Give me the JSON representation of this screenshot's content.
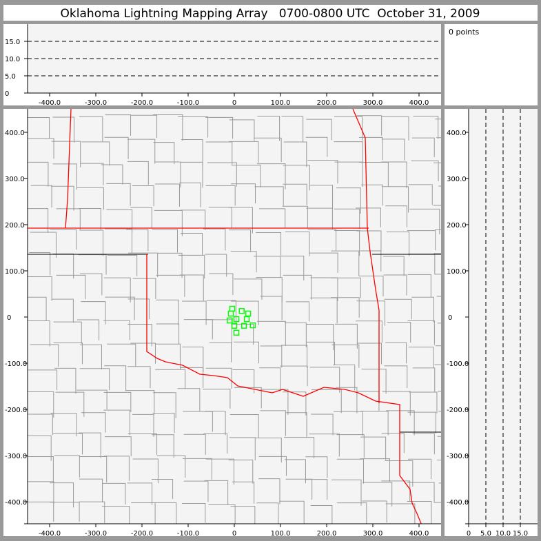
{
  "title": "Oklahoma Lightning Mapping Array   0700-0800 UTC  October 31, 2009",
  "points_label": "0 points",
  "colors": {
    "frame": "#999999",
    "plot_bg": "#f4f4f4",
    "state_border": "#ff0000",
    "county_border": "#999999",
    "station_marker": "#00ff00"
  },
  "chart_data": [
    {
      "type": "scatter",
      "panel": "altitude-vs-east-west",
      "xlim": [
        -450,
        450
      ],
      "ylim": [
        0,
        20
      ],
      "xticks": [
        -400,
        -300,
        -200,
        -100,
        0,
        100,
        200,
        300,
        400
      ],
      "xtick_labels": [
        "-400.0",
        "-300.0",
        "-200.0",
        "-100.0",
        "0",
        "100.0",
        "200.0",
        "300.0",
        "400.0"
      ],
      "yticks": [
        0,
        5,
        10,
        15
      ],
      "ytick_labels": [
        "0",
        "5.0",
        "10.0",
        "15.0"
      ],
      "grid": "dashed horizontal at 5, 10, 15",
      "points": []
    },
    {
      "type": "scatter",
      "panel": "plan-view-map",
      "xlim": [
        -450,
        450
      ],
      "ylim": [
        -450,
        450
      ],
      "xticks": [
        -400,
        -300,
        -200,
        -100,
        0,
        100,
        200,
        300,
        400
      ],
      "xtick_labels": [
        "-400.0",
        "-300.0",
        "-200.0",
        "-100.0",
        "0",
        "100.0",
        "200.0",
        "300.0",
        "400.0"
      ],
      "yticks": [
        -400,
        -300,
        -200,
        -100,
        0,
        100,
        200,
        300,
        400
      ],
      "ytick_labels": [
        "-400.0",
        "-300.0",
        "-200.0",
        "-100.0",
        "0",
        "100.0",
        "200.0",
        "300.0",
        "400.0"
      ],
      "stations": [
        [
          -4.5,
          18
        ],
        [
          16,
          13
        ],
        [
          30,
          7.5
        ],
        [
          -7.5,
          7.5
        ],
        [
          -10,
          -7.5
        ],
        [
          4.5,
          -4.5
        ],
        [
          27,
          -4.5
        ],
        [
          40,
          -18
        ],
        [
          0,
          -19
        ],
        [
          21,
          -19
        ],
        [
          4.5,
          -34
        ]
      ],
      "points": []
    },
    {
      "type": "scatter",
      "panel": "north-south-vs-altitude",
      "xlim": [
        0,
        20
      ],
      "ylim": [
        -450,
        450
      ],
      "xticks": [
        0,
        5,
        10,
        15
      ],
      "xtick_labels": [
        "0",
        "5.0",
        "10.0",
        "15.0"
      ],
      "yticks": [
        -400,
        -300,
        -200,
        -100,
        0,
        100,
        200,
        300,
        400
      ],
      "ytick_labels": [
        "-400.0",
        "-300.0",
        "-200.0",
        "-100.0",
        "0",
        "100.0",
        "200.0",
        "300.0",
        "400.0"
      ],
      "grid": "dashed vertical at 5, 10, 15",
      "points": []
    }
  ]
}
